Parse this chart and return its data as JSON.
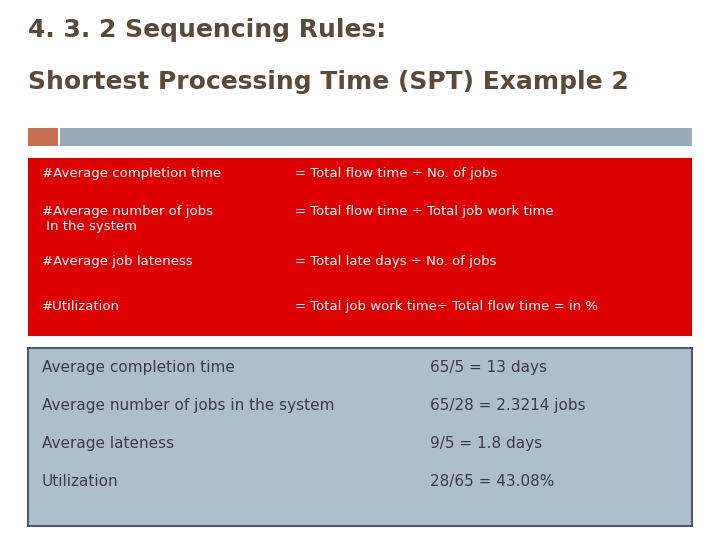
{
  "title_line1": "4. 3. 2 Sequencing Rules:",
  "title_line2": "Shortest Processing Time (SPT) Example 2",
  "title_color": "#5a4a3a",
  "title_fontsize": 18,
  "accent_bar_orange": "#c87050",
  "accent_bar_blue": "#9aaabb",
  "red_box_bg": "#dd0000",
  "red_box_text_color": "#ffffff",
  "red_left_col": [
    "#Average completion time",
    "#Average number of jobs\n In the system",
    "#Average job lateness",
    "#Utilization"
  ],
  "red_right_col": [
    "= Total flow time ÷ No. of jobs",
    "= Total flow time ÷ Total job work time",
    "= Total late days ÷ No. of jobs",
    "= Total job work time÷ Total flow time = in %"
  ],
  "blue_box_bg": "#adbfcf",
  "blue_box_border": "#505870",
  "blue_box_text_color": "#3a3a4a",
  "blue_left_col": [
    "Average completion time",
    "Average number of jobs in the system",
    "Average lateness",
    "Utilization"
  ],
  "blue_right_col": [
    "65/5 = 13 days",
    "65/28 = 2.3214 jobs",
    "9/5 = 1.8 days",
    "28/65 = 43.08%"
  ],
  "background_color": "#ffffff",
  "fig_width": 7.2,
  "fig_height": 5.4,
  "dpi": 100
}
